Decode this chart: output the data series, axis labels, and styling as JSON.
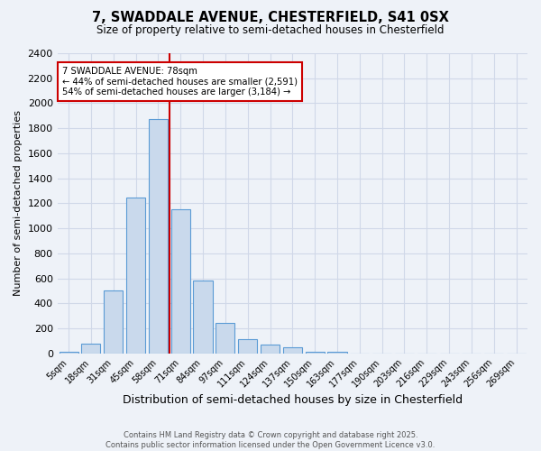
{
  "title1": "7, SWADDALE AVENUE, CHESTERFIELD, S41 0SX",
  "title2": "Size of property relative to semi-detached houses in Chesterfield",
  "xlabel": "Distribution of semi-detached houses by size in Chesterfield",
  "ylabel": "Number of semi-detached properties",
  "bar_labels": [
    "5sqm",
    "18sqm",
    "31sqm",
    "45sqm",
    "58sqm",
    "71sqm",
    "84sqm",
    "97sqm",
    "111sqm",
    "124sqm",
    "137sqm",
    "150sqm",
    "163sqm",
    "177sqm",
    "190sqm",
    "203sqm",
    "216sqm",
    "229sqm",
    "243sqm",
    "256sqm",
    "269sqm"
  ],
  "bar_values": [
    10,
    80,
    500,
    1245,
    1870,
    1150,
    585,
    245,
    115,
    70,
    45,
    15,
    10,
    0,
    0,
    0,
    0,
    0,
    0,
    0,
    0
  ],
  "bar_color": "#c9d9ec",
  "bar_edge_color": "#5b9bd5",
  "vline_x": 4.5,
  "annotation_text": "7 SWADDALE AVENUE: 78sqm\n← 44% of semi-detached houses are smaller (2,591)\n54% of semi-detached houses are larger (3,184) →",
  "annotation_box_color": "#ffffff",
  "annotation_box_edge_color": "#cc0000",
  "vline_color": "#cc0000",
  "grid_color": "#d0d8e8",
  "background_color": "#eef2f8",
  "footer_text": "Contains HM Land Registry data © Crown copyright and database right 2025.\nContains public sector information licensed under the Open Government Licence v3.0.",
  "ylim": [
    0,
    2400
  ],
  "yticks": [
    0,
    200,
    400,
    600,
    800,
    1000,
    1200,
    1400,
    1600,
    1800,
    2000,
    2200,
    2400
  ]
}
